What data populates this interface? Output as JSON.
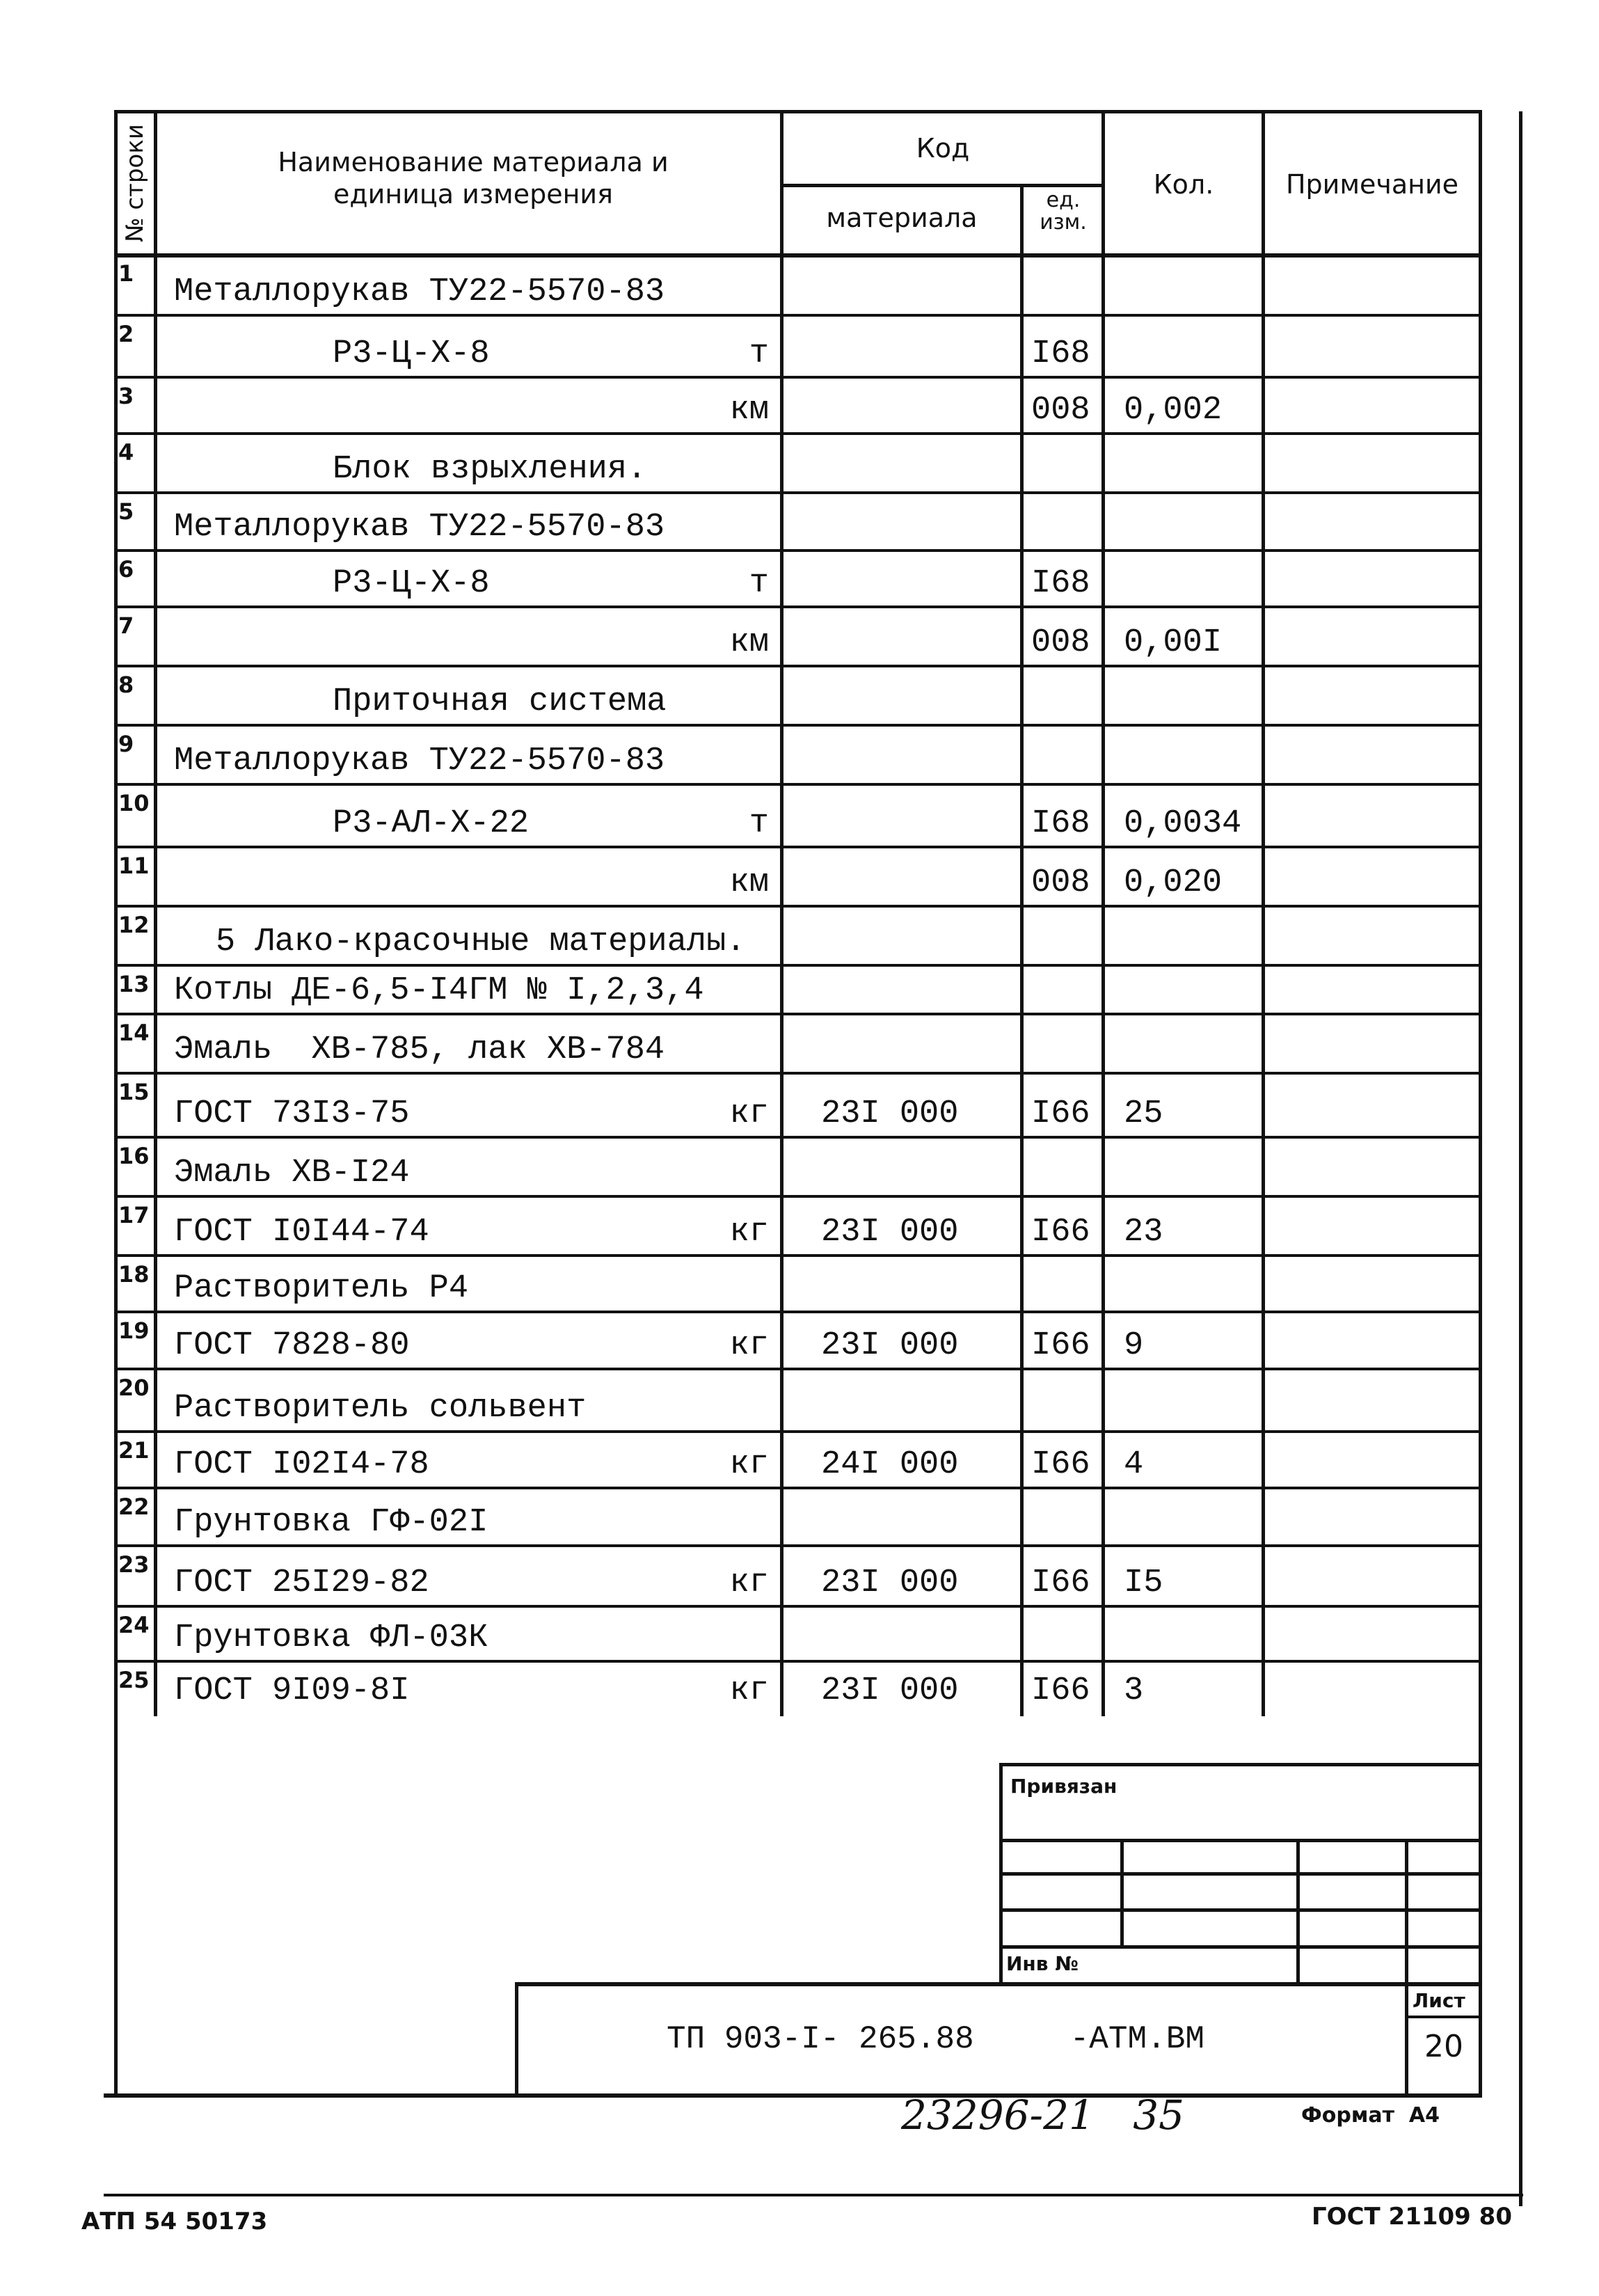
{
  "header": {
    "row_no": "№ строки",
    "name": "Наименование материала  и единица измерения",
    "code": "Код",
    "material": "материала",
    "unit": "ед. изм.",
    "qty": "Кол.",
    "note": "Примечание"
  },
  "rows": [
    {
      "n": "1",
      "name": "Металлорукав ТУ22-5570-83",
      "indent": 0,
      "unit_label": "",
      "material_code": "",
      "unit_code": "",
      "qty": "",
      "note": ""
    },
    {
      "n": "2",
      "name": "Р3-Ц-Х-8",
      "indent": 2,
      "unit_label": "т",
      "material_code": "",
      "unit_code": "I68",
      "qty": "",
      "note": ""
    },
    {
      "n": "3",
      "name": "",
      "indent": 0,
      "unit_label": "км",
      "material_code": "",
      "unit_code": "008",
      "qty": "0,002",
      "note": ""
    },
    {
      "n": "4",
      "name": "Блок взрыхления.",
      "indent": 2,
      "unit_label": "",
      "material_code": "",
      "unit_code": "",
      "qty": "",
      "note": ""
    },
    {
      "n": "5",
      "name": "Металлорукав ТУ22-5570-83",
      "indent": 0,
      "unit_label": "",
      "material_code": "",
      "unit_code": "",
      "qty": "",
      "note": ""
    },
    {
      "n": "6",
      "name": "Р3-Ц-Х-8",
      "indent": 2,
      "unit_label": "т",
      "material_code": "",
      "unit_code": "I68",
      "qty": "",
      "note": ""
    },
    {
      "n": "7",
      "name": "",
      "indent": 0,
      "unit_label": "км",
      "material_code": "",
      "unit_code": "008",
      "qty": "0,00I",
      "note": ""
    },
    {
      "n": "8",
      "name": "Приточная система",
      "indent": 2,
      "unit_label": "",
      "material_code": "",
      "unit_code": "",
      "qty": "",
      "note": ""
    },
    {
      "n": "9",
      "name": "Металлорукав ТУ22-5570-83",
      "indent": 0,
      "unit_label": "",
      "material_code": "",
      "unit_code": "",
      "qty": "",
      "note": ""
    },
    {
      "n": "10",
      "name": "Р3-АЛ-Х-22",
      "indent": 2,
      "unit_label": "т",
      "material_code": "",
      "unit_code": "I68",
      "qty": "0,0034",
      "note": ""
    },
    {
      "n": "11",
      "name": "",
      "indent": 0,
      "unit_label": "км",
      "material_code": "",
      "unit_code": "008",
      "qty": "0,020",
      "note": ""
    },
    {
      "n": "12",
      "name": "5 Лако-красочные материалы.",
      "indent": 1,
      "unit_label": "",
      "material_code": "",
      "unit_code": "",
      "qty": "",
      "note": ""
    },
    {
      "n": "13",
      "name": "Котлы ДЕ-6,5-I4ГМ № I,2,3,4",
      "indent": 0,
      "unit_label": "",
      "material_code": "",
      "unit_code": "",
      "qty": "",
      "note": ""
    },
    {
      "n": "14",
      "name": "Эмаль  ХВ-785, лак ХВ-784",
      "indent": 0,
      "unit_label": "",
      "material_code": "",
      "unit_code": "",
      "qty": "",
      "note": ""
    },
    {
      "n": "15",
      "name": "ГОСТ 73I3-75",
      "indent": 0,
      "unit_label": "кг",
      "material_code": "23I 000",
      "unit_code": "I66",
      "qty": "25",
      "note": ""
    },
    {
      "n": "16",
      "name": "Эмаль ХВ-I24",
      "indent": 0,
      "unit_label": "",
      "material_code": "",
      "unit_code": "",
      "qty": "",
      "note": ""
    },
    {
      "n": "17",
      "name": "ГОСТ I0I44-74",
      "indent": 0,
      "unit_label": "кг",
      "material_code": "23I 000",
      "unit_code": "I66",
      "qty": "23",
      "note": ""
    },
    {
      "n": "18",
      "name": "Растворитель Р4",
      "indent": 0,
      "unit_label": "",
      "material_code": "",
      "unit_code": "",
      "qty": "",
      "note": ""
    },
    {
      "n": "19",
      "name": "ГОСТ 7828-80",
      "indent": 0,
      "unit_label": "кг",
      "material_code": "23I 000",
      "unit_code": "I66",
      "qty": "9",
      "note": ""
    },
    {
      "n": "20",
      "name": "Растворитель сольвент",
      "indent": 0,
      "unit_label": "",
      "material_code": "",
      "unit_code": "",
      "qty": "",
      "note": ""
    },
    {
      "n": "21",
      "name": "ГОСТ I02I4-78",
      "indent": 0,
      "unit_label": "кг",
      "material_code": "24I 000",
      "unit_code": "I66",
      "qty": "4",
      "note": ""
    },
    {
      "n": "22",
      "name": "Грунтовка ГФ-02I",
      "indent": 0,
      "unit_label": "",
      "material_code": "",
      "unit_code": "",
      "qty": "",
      "note": ""
    },
    {
      "n": "23",
      "name": "ГОСТ 25I29-82",
      "indent": 0,
      "unit_label": "кг",
      "material_code": "23I 000",
      "unit_code": "I66",
      "qty": "I5",
      "note": ""
    },
    {
      "n": "24",
      "name": "Грунтовка ФЛ-03К",
      "indent": 0,
      "unit_label": "",
      "material_code": "",
      "unit_code": "",
      "qty": "",
      "note": ""
    },
    {
      "n": "25",
      "name": "ГОСТ 9I09-8I",
      "indent": 0,
      "unit_label": "кг",
      "material_code": "23I 000",
      "unit_code": "I66",
      "qty": "3",
      "note": ""
    }
  ],
  "stamp": {
    "linked": "Привязан",
    "inv_no": "Инв №",
    "designation": "ТП 903-I- 265.88     -АТМ.ВМ",
    "sheet_label": "Лист",
    "sheet_no": "20"
  },
  "footer": {
    "handwritten": "23296-21   35",
    "format": "Формат  А4",
    "left_code": "АТП 54 50173",
    "standard": "ГОСТ 21109 80"
  }
}
